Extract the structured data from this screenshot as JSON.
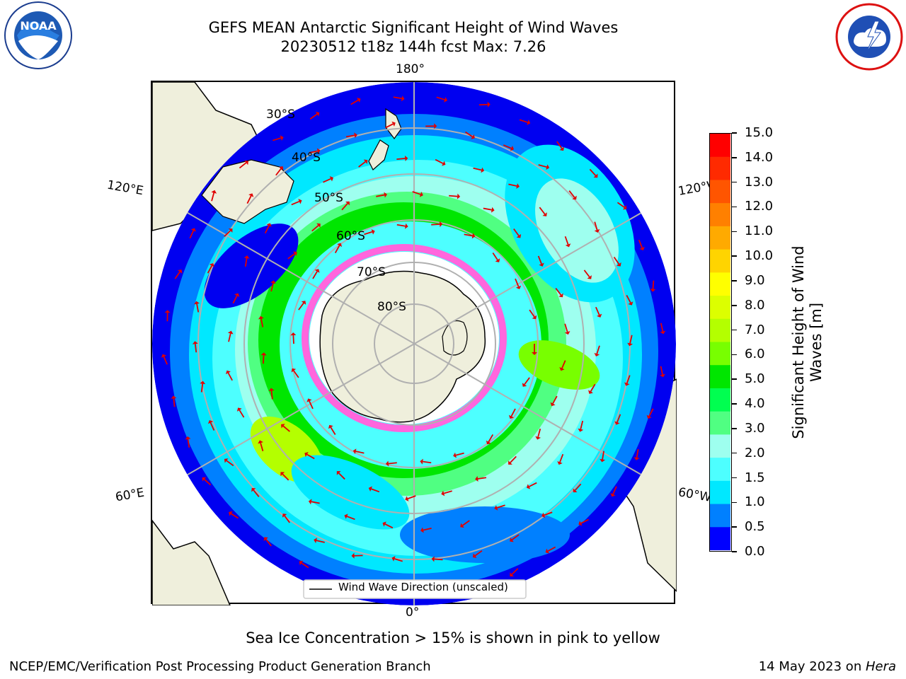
{
  "title_line1": "GEFS MEAN Antarctic Significant Height of Wind Waves",
  "title_line2": "20230512 t18z 144h fcst   Max: 7.26",
  "logos": {
    "left": "NOAA",
    "right": "NATIONAL WEATHER SERVICE"
  },
  "map": {
    "lon_labels": {
      "top": "180°",
      "bottom": "0°",
      "left_upper": "120°E",
      "left_lower": "60°E",
      "right_upper": "120°W",
      "right_lower": "60°W"
    },
    "lat_labels": [
      "30°S",
      "40°S",
      "50°S",
      "60°S",
      "70°S",
      "80°S"
    ],
    "legend_label": "Wind Wave Direction (unscaled)"
  },
  "colorbar": {
    "label": "Significant Height of Wind Waves [m]",
    "label_line1": "Significant Height of Wind",
    "label_line2": "Waves [m]",
    "ticks": [
      "15.0",
      "14.0",
      "13.0",
      "12.0",
      "11.0",
      "10.0",
      "9.0",
      "8.0",
      "7.0",
      "6.0",
      "5.0",
      "4.0",
      "3.0",
      "2.0",
      "1.5",
      "1.0",
      "0.5",
      "0.0"
    ],
    "colors": [
      "#ff0000",
      "#ff2a00",
      "#ff5500",
      "#ff8000",
      "#ffaa00",
      "#ffd400",
      "#ffff00",
      "#dcff00",
      "#b4ff00",
      "#78ff00",
      "#00e600",
      "#00ff50",
      "#50ff82",
      "#9effef",
      "#4dffff",
      "#00e8ff",
      "#0080ff",
      "#0000ff"
    ]
  },
  "sea_ice_note": "Sea Ice Concentration > 15% is shown in pink to yellow",
  "footer_left": "NCEP/EMC/Verification Post Processing Product Generation Branch",
  "footer_right_prefix": "14 May 2023 on ",
  "footer_right_host": "Hera"
}
